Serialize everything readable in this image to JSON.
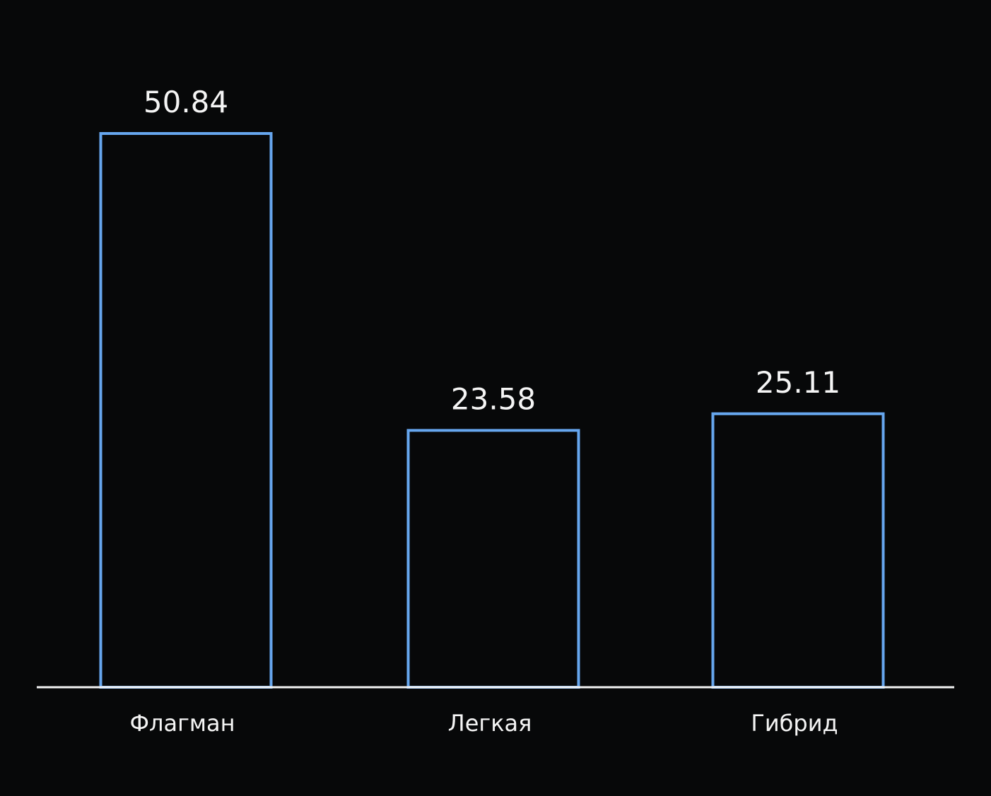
{
  "chart_data": {
    "type": "bar",
    "categories": [
      "Флагман",
      "Легкая",
      "Гибрид"
    ],
    "values": [
      50.84,
      23.58,
      25.11
    ],
    "value_labels": [
      "50.84",
      "23.58",
      "25.11"
    ],
    "ylim": [
      0,
      50.84
    ],
    "grid": false,
    "legend": "none",
    "style": {
      "background": "#070809",
      "bar_stroke": "#66a6ee",
      "bar_fill": "none",
      "axis_color": "#f2f2f2",
      "text_color": "#f5f5f5"
    }
  }
}
